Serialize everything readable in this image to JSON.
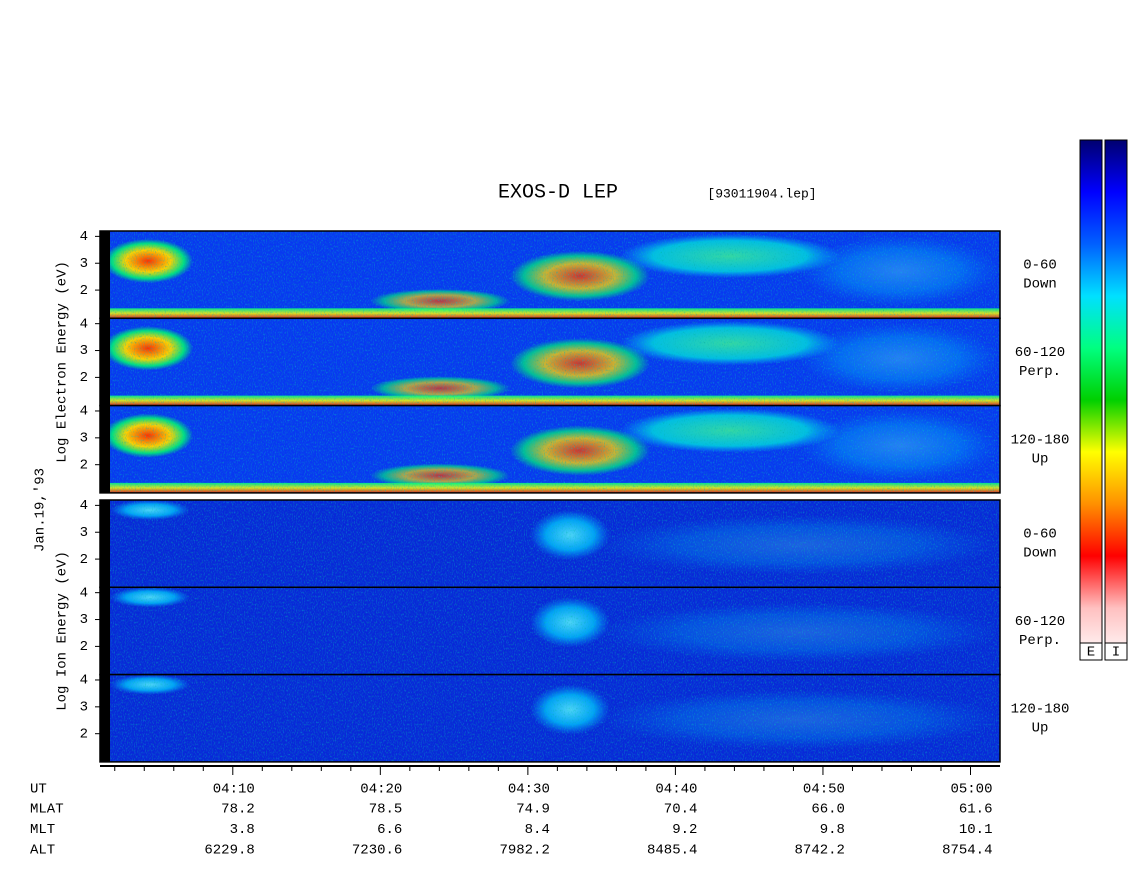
{
  "chart_data": {
    "type": "spectrogram",
    "title": "EXOS-D LEP",
    "file": "[93011904.lep]",
    "date": "Jan.19,'93",
    "ylim": [
      0.95,
      4.2
    ],
    "yticks": [
      2,
      3,
      4
    ],
    "groups": [
      {
        "ylabel": "Log Electron Energy (eV)",
        "panels": [
          {
            "angle": "0-60",
            "direction": "Down"
          },
          {
            "angle": "60-120",
            "direction": "Perp."
          },
          {
            "angle": "120-180",
            "direction": "Up"
          }
        ]
      },
      {
        "ylabel": "Log Ion Energy (eV)",
        "panels": [
          {
            "angle": "0-60",
            "direction": "Down"
          },
          {
            "angle": "60-120",
            "direction": "Perp."
          },
          {
            "angle": "120-180",
            "direction": "Up"
          }
        ]
      }
    ],
    "xlim": [
      "04:01",
      "05:02"
    ],
    "xticks": [
      "04:10",
      "04:20",
      "04:30",
      "04:40",
      "04:50",
      "05:00"
    ],
    "xminorticks": [
      "04:02",
      "04:04",
      "04:06",
      "04:08",
      "04:12",
      "04:14",
      "04:16",
      "04:18",
      "04:22",
      "04:24",
      "04:26",
      "04:28",
      "04:32",
      "04:34",
      "04:36",
      "04:38",
      "04:42",
      "04:44",
      "04:46",
      "04:48",
      "04:52",
      "04:54",
      "04:56",
      "04:58"
    ],
    "xlabel": "UT",
    "orbit_rows": [
      {
        "name": "MLAT",
        "values": [
          "78.2",
          "78.5",
          "74.9",
          "70.4",
          "66.0",
          "61.6"
        ]
      },
      {
        "name": "MLT",
        "values": [
          "3.8",
          "6.6",
          "8.4",
          "9.2",
          "9.8",
          "10.1"
        ]
      },
      {
        "name": "ALT",
        "values": [
          "6229.8",
          "7230.6",
          "7982.2",
          "8485.4",
          "8742.2",
          "8754.4"
        ]
      }
    ],
    "colorbars": [
      "E",
      "I"
    ],
    "colormap": [
      "#000070",
      "#0000ff",
      "#0060ff",
      "#00e0ff",
      "#00ff80",
      "#00d000",
      "#ffff00",
      "#ff9000",
      "#ff0000",
      "#ffc0c0",
      "#ffffff"
    ]
  }
}
